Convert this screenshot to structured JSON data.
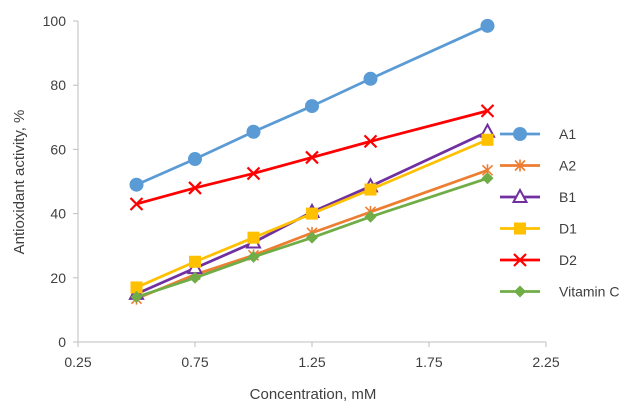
{
  "chart_data": {
    "type": "line",
    "title": "",
    "xlabel": "Concentration, mM",
    "ylabel": "Antioxidant activity, %",
    "x": [
      0.5,
      0.75,
      1.0,
      1.25,
      1.5,
      2.0
    ],
    "xlim": [
      0.25,
      2.25
    ],
    "ylim": [
      0,
      100
    ],
    "x_ticks": [
      "0.25",
      "0.75",
      "1.25",
      "1.75",
      "2.25"
    ],
    "x_tick_values": [
      0.25,
      0.75,
      1.25,
      1.75,
      2.25
    ],
    "y_ticks": [
      "0",
      "20",
      "40",
      "60",
      "80",
      "100"
    ],
    "y_tick_values": [
      0,
      20,
      40,
      60,
      80,
      100
    ],
    "grid": false,
    "legend_position": "right",
    "series": [
      {
        "name": "A1",
        "color": "#5B9BD5",
        "marker": "circle",
        "values": [
          49,
          57,
          65.5,
          73.5,
          82,
          98.5
        ]
      },
      {
        "name": "A2",
        "color": "#ED7D31",
        "marker": "asterisk",
        "values": [
          13.5,
          21,
          27,
          34,
          40.5,
          53.5
        ]
      },
      {
        "name": "B1",
        "color": "#7030A0",
        "marker": "triangle",
        "values": [
          15,
          23,
          31,
          40.5,
          48.5,
          65.5
        ]
      },
      {
        "name": "D1",
        "color": "#FFC000",
        "marker": "square",
        "values": [
          17,
          25,
          32.5,
          40,
          47.5,
          63
        ]
      },
      {
        "name": "D2",
        "color": "#FF0000",
        "marker": "x",
        "values": [
          43,
          48,
          52.5,
          57.5,
          62.5,
          72
        ]
      },
      {
        "name": "Vitamin C",
        "color": "#70AD47",
        "marker": "diamond",
        "values": [
          14,
          20,
          26.5,
          32.5,
          39,
          51
        ]
      }
    ]
  }
}
